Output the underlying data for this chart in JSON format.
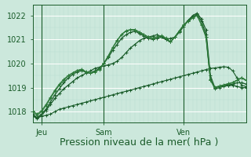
{
  "background_color": "#cce8dc",
  "grid_color_major": "#ffffff",
  "grid_color_minor": "#b8ddd0",
  "line_color_dark": "#1a5c2a",
  "line_color_medium": "#2d7a3a",
  "xlabel": "Pression niveau de la mer( hPa )",
  "xlabel_fontsize": 9,
  "yticks": [
    1018,
    1019,
    1020,
    1021,
    1022
  ],
  "ylim": [
    1017.55,
    1022.45
  ],
  "xtick_labels": [
    "Jeu",
    "Sam",
    "Ven"
  ],
  "xtick_positions": [
    2,
    16,
    34
  ],
  "xlim": [
    0,
    48
  ],
  "num_points": 49,
  "series1": [
    1017.8,
    1017.75,
    1017.8,
    1017.85,
    1017.9,
    1018.0,
    1018.1,
    1018.15,
    1018.2,
    1018.25,
    1018.3,
    1018.35,
    1018.4,
    1018.45,
    1018.5,
    1018.55,
    1018.6,
    1018.65,
    1018.7,
    1018.75,
    1018.8,
    1018.85,
    1018.9,
    1018.95,
    1019.0,
    1019.05,
    1019.1,
    1019.15,
    1019.2,
    1019.25,
    1019.3,
    1019.35,
    1019.4,
    1019.45,
    1019.5,
    1019.55,
    1019.6,
    1019.65,
    1019.7,
    1019.75,
    1019.8,
    1019.82,
    1019.85,
    1019.87,
    1019.85,
    1019.7,
    1019.4,
    1019.1,
    1019.05
  ],
  "series2": [
    1017.85,
    1017.7,
    1017.85,
    1018.05,
    1018.3,
    1018.55,
    1018.75,
    1018.95,
    1019.1,
    1019.25,
    1019.4,
    1019.5,
    1019.6,
    1019.7,
    1019.8,
    1019.85,
    1019.9,
    1019.95,
    1020.0,
    1020.1,
    1020.25,
    1020.45,
    1020.65,
    1020.8,
    1020.95,
    1021.05,
    1021.1,
    1021.15,
    1021.2,
    1021.1,
    1021.0,
    1021.05,
    1021.1,
    1021.3,
    1021.55,
    1021.8,
    1022.0,
    1022.1,
    1021.85,
    1021.4,
    1019.5,
    1019.0,
    1019.05,
    1019.1,
    1019.1,
    1019.1,
    1019.05,
    1019.0,
    1019.0
  ],
  "series3": [
    1017.9,
    1017.75,
    1017.9,
    1018.1,
    1018.4,
    1018.7,
    1018.95,
    1019.2,
    1019.4,
    1019.55,
    1019.65,
    1019.7,
    1019.65,
    1019.6,
    1019.7,
    1019.8,
    1020.0,
    1020.25,
    1020.55,
    1020.8,
    1021.05,
    1021.2,
    1021.3,
    1021.35,
    1021.25,
    1021.15,
    1021.05,
    1021.0,
    1021.05,
    1021.1,
    1021.0,
    1020.9,
    1021.1,
    1021.35,
    1021.6,
    1021.8,
    1021.95,
    1022.05,
    1021.75,
    1021.2,
    1019.35,
    1018.95,
    1019.0,
    1019.05,
    1019.1,
    1019.15,
    1019.2,
    1019.2,
    1019.15
  ],
  "series4": [
    1018.0,
    1017.85,
    1018.0,
    1018.25,
    1018.55,
    1018.85,
    1019.1,
    1019.3,
    1019.5,
    1019.6,
    1019.7,
    1019.75,
    1019.65,
    1019.6,
    1019.65,
    1019.75,
    1020.0,
    1020.3,
    1020.65,
    1020.95,
    1021.2,
    1021.35,
    1021.4,
    1021.4,
    1021.3,
    1021.2,
    1021.1,
    1021.05,
    1021.1,
    1021.15,
    1021.05,
    1020.9,
    1021.1,
    1021.35,
    1021.6,
    1021.75,
    1021.9,
    1022.0,
    1021.6,
    1021.1,
    1019.3,
    1019.0,
    1019.05,
    1019.1,
    1019.15,
    1019.2,
    1019.3,
    1019.4,
    1019.3
  ],
  "series5": [
    1018.05,
    1017.9,
    1018.05,
    1018.3,
    1018.6,
    1018.9,
    1019.15,
    1019.35,
    1019.5,
    1019.62,
    1019.72,
    1019.77,
    1019.67,
    1019.62,
    1019.67,
    1019.77,
    1020.02,
    1020.32,
    1020.67,
    1020.97,
    1021.22,
    1021.37,
    1021.42,
    1021.42,
    1021.32,
    1021.22,
    1021.12,
    1021.07,
    1021.12,
    1021.17,
    1021.07,
    1020.92,
    1021.12,
    1021.37,
    1021.62,
    1021.77,
    1021.92,
    1022.02,
    1021.62,
    1021.12,
    1019.32,
    1019.02,
    1019.07,
    1019.12,
    1019.17,
    1019.22,
    1019.32,
    1019.42,
    1019.32
  ],
  "marker": "+",
  "markersize": 3,
  "linewidth": 0.9
}
